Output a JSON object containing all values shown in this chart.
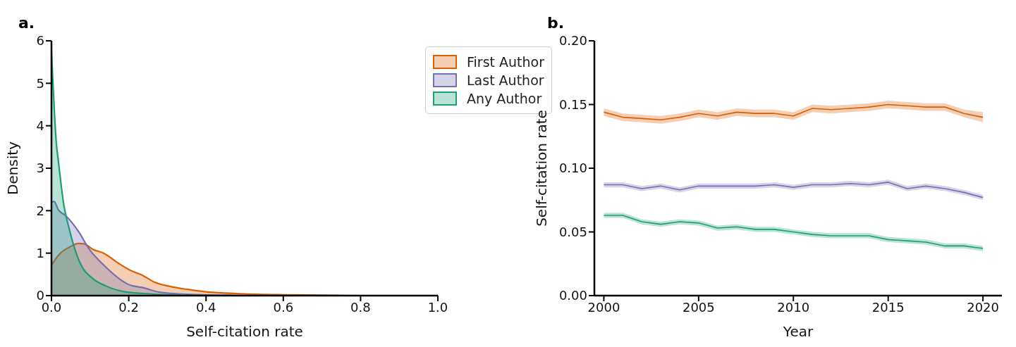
{
  "chart_data": [
    {
      "type": "area",
      "title": "a.",
      "xlabel": "Self-citation rate",
      "ylabel": "Density",
      "xlim": [
        0,
        1
      ],
      "xticks": [
        {
          "value": 0,
          "label": "0.0"
        },
        {
          "value": 0.2,
          "label": "0.2"
        },
        {
          "value": 0.4,
          "label": "0.4"
        },
        {
          "value": 0.6,
          "label": "0.6"
        },
        {
          "value": 0.8,
          "label": "0.8"
        },
        {
          "value": 1,
          "label": "1.0"
        }
      ],
      "ylim": [
        0,
        6
      ],
      "yticks": [
        0,
        1,
        2,
        3,
        4,
        5,
        6
      ],
      "legend": "top right",
      "grid": false,
      "series": [
        {
          "name": "First Author",
          "color": "#d95f02",
          "x": [
            0,
            0.023,
            0.046,
            0.07,
            0.084,
            0.107,
            0.135,
            0.177,
            0.21,
            0.233,
            0.266,
            0.3,
            0.35,
            0.4,
            0.45,
            0.5,
            0.6,
            0.7,
            0.8,
            1.0
          ],
          "values": [
            0.72,
            1.0,
            1.14,
            1.23,
            1.22,
            1.09,
            1.0,
            0.74,
            0.57,
            0.49,
            0.32,
            0.23,
            0.15,
            0.09,
            0.06,
            0.04,
            0.02,
            0.01,
            0,
            0
          ]
        },
        {
          "name": "Last Author",
          "color": "#7570b3",
          "x": [
            0,
            0.0065,
            0.018,
            0.037,
            0.07,
            0.098,
            0.135,
            0.2,
            0.24,
            0.28,
            0.35,
            0.45,
            0.5,
            1.0
          ],
          "values": [
            2.19,
            2.22,
            2.02,
            1.88,
            1.51,
            1.09,
            0.72,
            0.26,
            0.18,
            0.08,
            0.03,
            0.01,
            0,
            0
          ]
        },
        {
          "name": "Any Author",
          "color": "#1b9e77",
          "x": [
            0,
            0.013,
            0.018,
            0.032,
            0.046,
            0.056,
            0.074,
            0.107,
            0.14,
            0.19,
            0.24,
            0.3,
            0.4,
            1.0
          ],
          "values": [
            5.77,
            3.55,
            3.16,
            2.13,
            1.57,
            1.23,
            0.77,
            0.4,
            0.23,
            0.09,
            0.05,
            0.02,
            0,
            0
          ]
        }
      ]
    },
    {
      "type": "line",
      "title": "b.",
      "xlabel": "Year",
      "ylabel": "Self-citation rate",
      "xlim": [
        1999.5,
        2021
      ],
      "xticks": [
        2000,
        2005,
        2010,
        2015,
        2020
      ],
      "ylim": [
        0,
        0.2
      ],
      "yticks": [
        {
          "value": 0,
          "label": "0.00"
        },
        {
          "value": 0.05,
          "label": "0.05"
        },
        {
          "value": 0.1,
          "label": "0.10"
        },
        {
          "value": 0.15,
          "label": "0.15"
        },
        {
          "value": 0.2,
          "label": "0.20"
        }
      ],
      "legend": false,
      "grid": false,
      "x": [
        2000,
        2001,
        2002,
        2003,
        2004,
        2005,
        2006,
        2007,
        2008,
        2009,
        2010,
        2011,
        2012,
        2013,
        2014,
        2015,
        2016,
        2017,
        2018,
        2019,
        2020
      ],
      "series": [
        {
          "color": "#d95f02",
          "values": [
            0.144,
            0.14,
            0.139,
            0.138,
            0.14,
            0.143,
            0.141,
            0.144,
            0.143,
            0.143,
            0.141,
            0.147,
            0.146,
            0.147,
            0.148,
            0.15,
            0.149,
            0.148,
            0.148,
            0.143,
            0.14
          ],
          "lower": [
            0.141,
            0.137,
            0.136,
            0.135,
            0.137,
            0.14,
            0.138,
            0.141,
            0.14,
            0.14,
            0.138,
            0.144,
            0.143,
            0.144,
            0.145,
            0.147,
            0.146,
            0.145,
            0.145,
            0.14,
            0.136
          ],
          "upper": [
            0.147,
            0.143,
            0.142,
            0.141,
            0.143,
            0.146,
            0.144,
            0.147,
            0.146,
            0.146,
            0.144,
            0.15,
            0.149,
            0.15,
            0.151,
            0.153,
            0.152,
            0.151,
            0.151,
            0.146,
            0.144
          ]
        },
        {
          "color": "#7570b3",
          "values": [
            0.087,
            0.087,
            0.084,
            0.086,
            0.083,
            0.086,
            0.086,
            0.086,
            0.086,
            0.087,
            0.085,
            0.087,
            0.087,
            0.088,
            0.087,
            0.089,
            0.084,
            0.086,
            0.084,
            0.081,
            0.077
          ],
          "lower": [
            0.085,
            0.085,
            0.082,
            0.084,
            0.081,
            0.084,
            0.084,
            0.084,
            0.084,
            0.085,
            0.083,
            0.085,
            0.085,
            0.086,
            0.085,
            0.087,
            0.082,
            0.084,
            0.082,
            0.079,
            0.075
          ],
          "upper": [
            0.089,
            0.089,
            0.086,
            0.088,
            0.085,
            0.088,
            0.088,
            0.088,
            0.088,
            0.089,
            0.087,
            0.089,
            0.089,
            0.09,
            0.089,
            0.091,
            0.086,
            0.088,
            0.086,
            0.083,
            0.079
          ]
        },
        {
          "color": "#1b9e77",
          "values": [
            0.063,
            0.063,
            0.058,
            0.056,
            0.058,
            0.057,
            0.053,
            0.054,
            0.052,
            0.052,
            0.05,
            0.048,
            0.047,
            0.047,
            0.047,
            0.044,
            0.043,
            0.042,
            0.039,
            0.039,
            0.037
          ],
          "lower": [
            0.061,
            0.061,
            0.056,
            0.054,
            0.056,
            0.055,
            0.051,
            0.052,
            0.05,
            0.05,
            0.048,
            0.046,
            0.045,
            0.045,
            0.045,
            0.042,
            0.041,
            0.04,
            0.037,
            0.037,
            0.035
          ],
          "upper": [
            0.065,
            0.065,
            0.06,
            0.058,
            0.06,
            0.059,
            0.055,
            0.056,
            0.054,
            0.054,
            0.052,
            0.05,
            0.049,
            0.049,
            0.049,
            0.046,
            0.045,
            0.044,
            0.041,
            0.041,
            0.039
          ]
        }
      ]
    }
  ]
}
